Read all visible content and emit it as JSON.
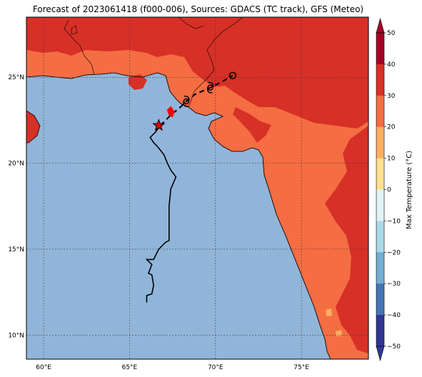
{
  "title": "Forecast of 2023061418 (f000-006), Sources: GDACS (TC track), GFS (Meteo)",
  "map": {
    "lon_range": [
      59,
      78.9
    ],
    "lat_range": [
      8.6,
      28.5
    ],
    "lon_ticks": [
      60,
      65,
      70,
      75
    ],
    "lon_tick_labels": [
      "60°E",
      "65°E",
      "70°E",
      "75°E"
    ],
    "lat_ticks": [
      10,
      15,
      20,
      25
    ],
    "lat_tick_labels": [
      "10°N",
      "15°N",
      "20°N",
      "25°N"
    ],
    "gridlines": true,
    "ocean_color": "#91b5d9",
    "land_color_hot": "#d73027",
    "land_color_warm": "#f46d43",
    "land_color_mild": "#fdae61"
  },
  "colorbar": {
    "label": "Max Temperature (°C)",
    "ticks": [
      "50",
      "40",
      "30",
      "20",
      "10",
      "0",
      "−10",
      "−20",
      "−30",
      "−40",
      "−50"
    ],
    "colors": [
      "#a50026",
      "#d73027",
      "#f46d43",
      "#fdae61",
      "#fee090",
      "#ffffbf",
      "#e0f3f8",
      "#abd9e9",
      "#74add1",
      "#4575b4",
      "#313695"
    ]
  },
  "track": {
    "observed": [
      [
        66.0,
        11.9
      ],
      [
        66.0,
        12.3
      ],
      [
        66.3,
        12.4
      ],
      [
        66.4,
        12.9
      ],
      [
        66.3,
        13.5
      ],
      [
        66.1,
        13.6
      ],
      [
        66.3,
        14.1
      ],
      [
        66.0,
        14.4
      ],
      [
        66.4,
        14.4
      ],
      [
        66.7,
        15.0
      ],
      [
        67.1,
        15.4
      ],
      [
        67.3,
        15.5
      ],
      [
        67.3,
        17.5
      ],
      [
        67.4,
        18.5
      ],
      [
        67.7,
        19.2
      ],
      [
        67.4,
        19.6
      ],
      [
        67.2,
        20.0
      ],
      [
        67.0,
        20.5
      ],
      [
        66.6,
        21.0
      ],
      [
        66.4,
        21.2
      ],
      [
        66.2,
        21.5
      ],
      [
        66.5,
        21.8
      ],
      [
        66.8,
        22.2
      ]
    ],
    "current": [
      66.7,
      22.2
    ],
    "forecast": [
      [
        66.8,
        22.2
      ],
      [
        67.4,
        22.8
      ],
      [
        68.0,
        23.3
      ],
      [
        68.3,
        23.6
      ],
      [
        68.8,
        24.0
      ],
      [
        69.7,
        24.4
      ],
      [
        70.3,
        24.7
      ],
      [
        71.0,
        25.1
      ]
    ],
    "marker_positions": [
      [
        68.3,
        23.6
      ],
      [
        69.7,
        24.4
      ],
      [
        71.0,
        25.1
      ]
    ],
    "red_patch": [
      [
        67.3,
        22.8
      ],
      [
        67.2,
        23.1
      ],
      [
        67.4,
        23.3
      ],
      [
        67.6,
        23.0
      ],
      [
        67.5,
        22.7
      ]
    ]
  }
}
